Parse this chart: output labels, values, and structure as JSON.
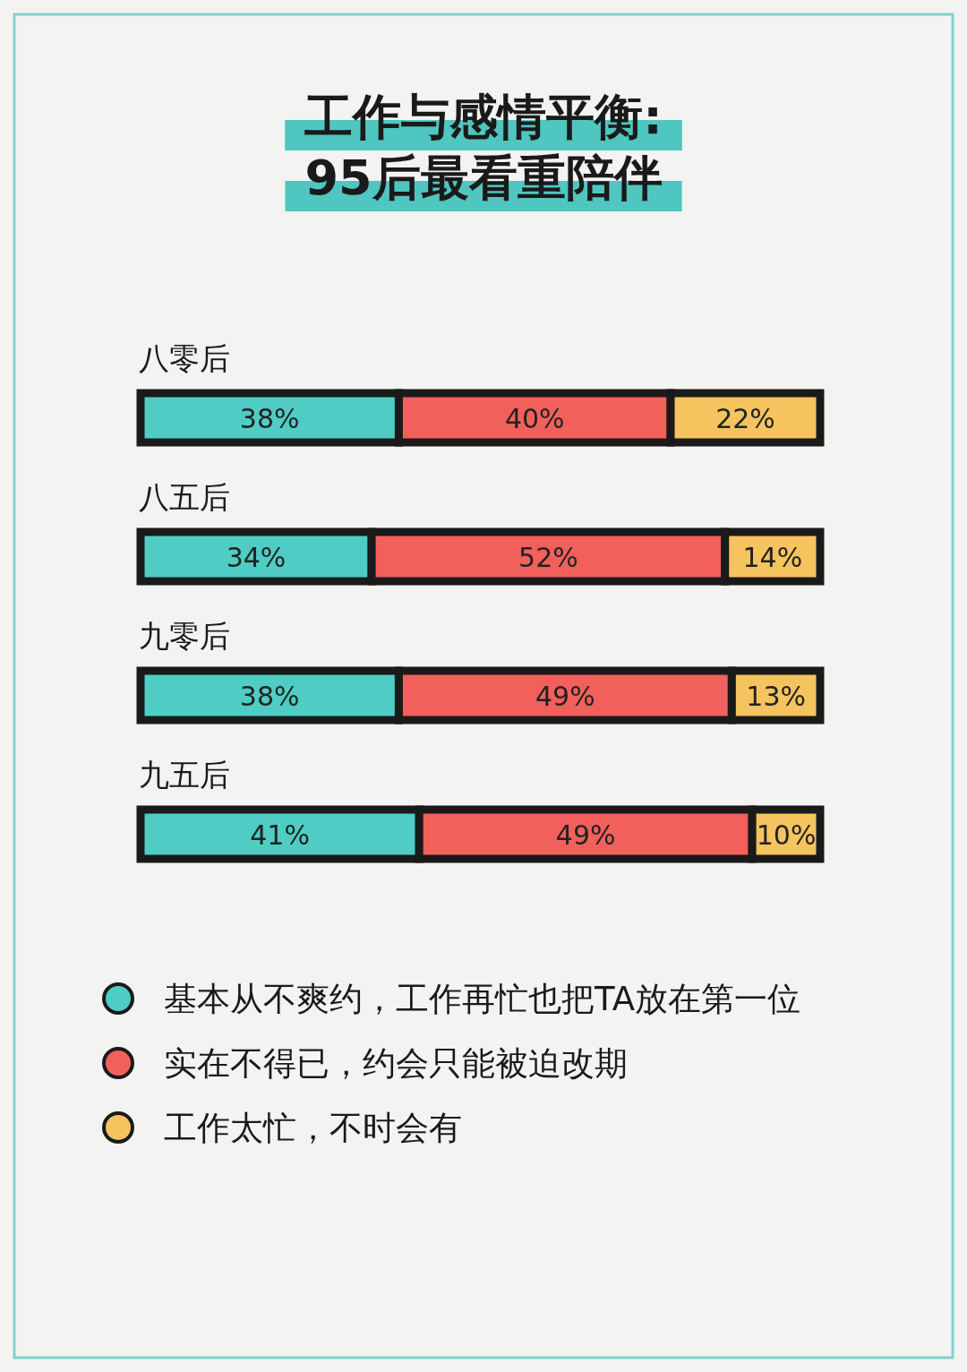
{
  "chart_data": {
    "type": "bar",
    "orientation": "horizontal",
    "stacked": true,
    "title": "工作与感情平衡:\n95后最看重陪伴",
    "categories": [
      "八零后",
      "八五后",
      "九零后",
      "九五后"
    ],
    "series": [
      {
        "name": "基本从不爽约，工作再忙也把TA放在第一位",
        "color": "#4fcdc5",
        "values": [
          38,
          34,
          38,
          41
        ],
        "value_labels": [
          "38%",
          "34%",
          "38%",
          "41%"
        ]
      },
      {
        "name": "实在不得已，约会只能被迫改期",
        "color": "#f2605c",
        "values": [
          40,
          52,
          49,
          49
        ],
        "value_labels": [
          "40%",
          "52%",
          "49%",
          "49%"
        ]
      },
      {
        "name": "工作太忙，不时会有",
        "color": "#f5c45e",
        "values": [
          22,
          14,
          13,
          10
        ],
        "value_labels": [
          "22%",
          "14%",
          "13%",
          "10%"
        ]
      }
    ],
    "legend": "bottom"
  }
}
